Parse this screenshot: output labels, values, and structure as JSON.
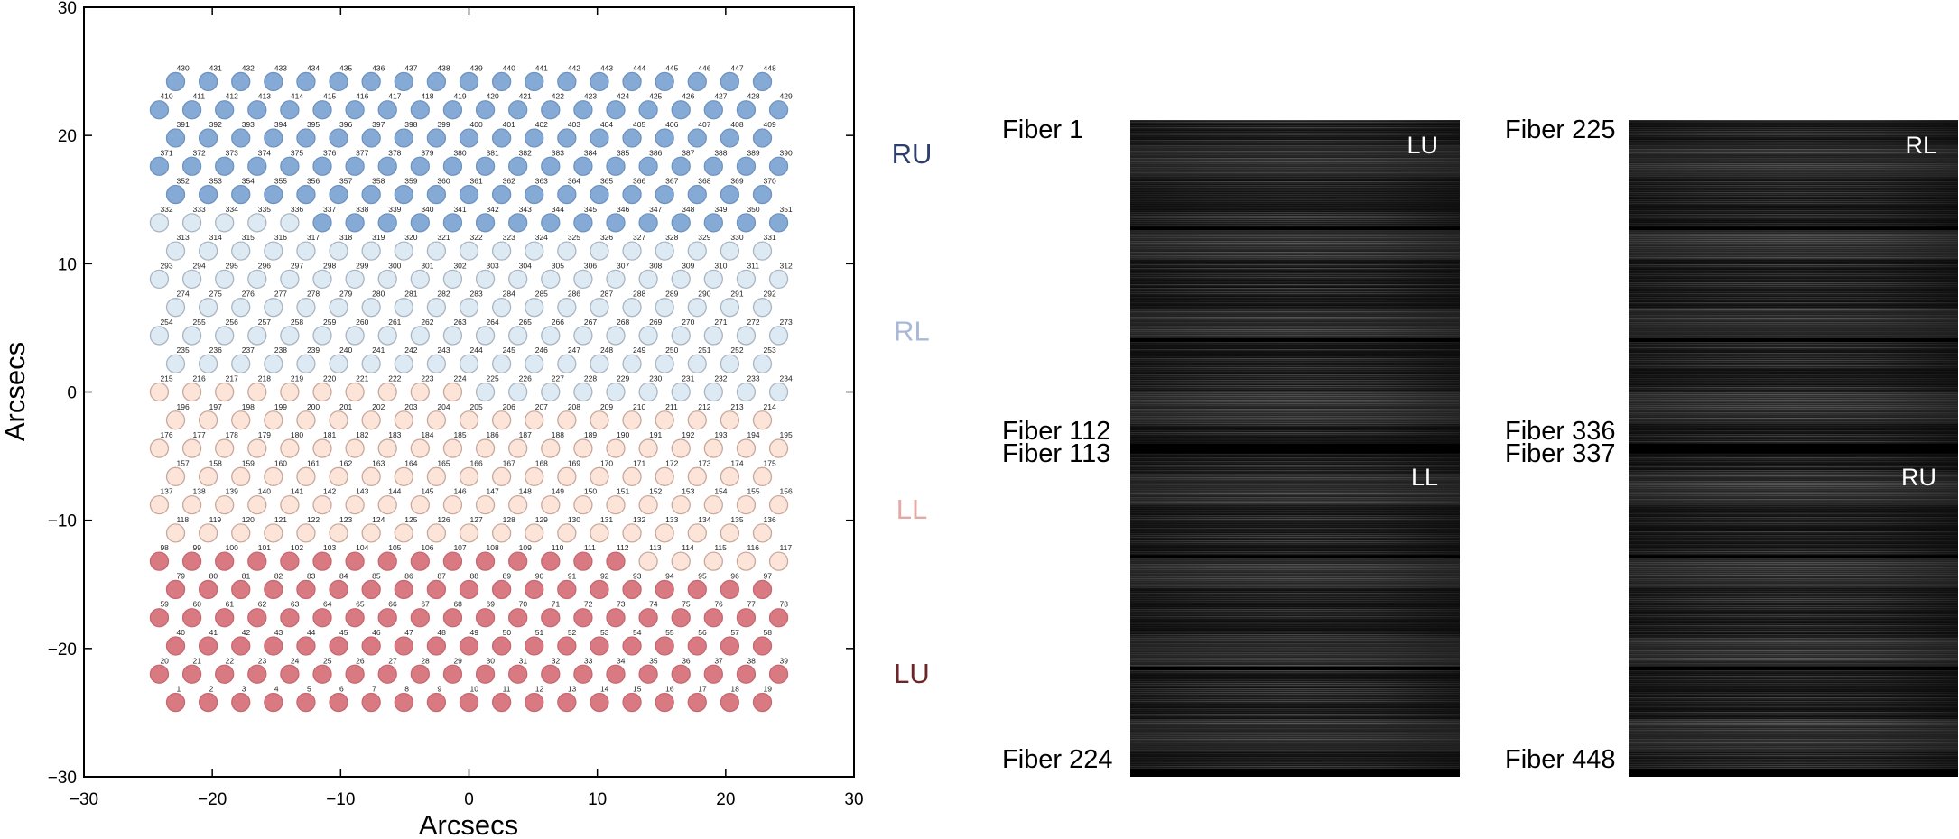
{
  "chart_data": {
    "type": "scatter",
    "xlabel": "Arcsecs",
    "ylabel": "Arcsecs",
    "xlim": [
      -30,
      30
    ],
    "ylim": [
      -30,
      30
    ],
    "xticks": [
      -30,
      -20,
      -10,
      0,
      10,
      20,
      30
    ],
    "yticks": [
      -30,
      -20,
      -10,
      0,
      10,
      20,
      30
    ],
    "xtick_labels": [
      "−30",
      "−20",
      "−10",
      "0",
      "10",
      "20",
      "30"
    ],
    "ytick_labels": [
      "−30",
      "−20",
      "−10",
      "0",
      "10",
      "20",
      "30"
    ],
    "grid": false,
    "fiber_count": 448,
    "row_spacing_arcsec": 2.2,
    "fiber_spacing_arcsec": 2.54,
    "rows": [
      {
        "first": 1,
        "count": 19,
        "y": -24.2
      },
      {
        "first": 20,
        "count": 20,
        "y": -22.0
      },
      {
        "first": 40,
        "count": 19,
        "y": -19.8
      },
      {
        "first": 59,
        "count": 20,
        "y": -17.6
      },
      {
        "first": 79,
        "count": 19,
        "y": -15.4
      },
      {
        "first": 98,
        "count": 20,
        "y": -13.2
      },
      {
        "first": 118,
        "count": 19,
        "y": -11.0
      },
      {
        "first": 137,
        "count": 20,
        "y": -8.8
      },
      {
        "first": 157,
        "count": 19,
        "y": -6.6
      },
      {
        "first": 176,
        "count": 20,
        "y": -4.4
      },
      {
        "first": 196,
        "count": 19,
        "y": -2.2
      },
      {
        "first": 215,
        "count": 20,
        "y": 0.0
      },
      {
        "first": 235,
        "count": 19,
        "y": 2.2
      },
      {
        "first": 254,
        "count": 20,
        "y": 4.4
      },
      {
        "first": 274,
        "count": 19,
        "y": 6.6
      },
      {
        "first": 293,
        "count": 20,
        "y": 8.8
      },
      {
        "first": 313,
        "count": 19,
        "y": 11.0
      },
      {
        "first": 332,
        "count": 20,
        "y": 13.2
      },
      {
        "first": 352,
        "count": 19,
        "y": 15.4
      },
      {
        "first": 371,
        "count": 20,
        "y": 17.6
      },
      {
        "first": 391,
        "count": 19,
        "y": 19.8
      },
      {
        "first": 410,
        "count": 20,
        "y": 22.0
      },
      {
        "first": 430,
        "count": 19,
        "y": 24.2
      }
    ],
    "groups": [
      {
        "name": "LU",
        "from": 1,
        "to": 112,
        "color": "#d97a82",
        "edge": "#c56870"
      },
      {
        "name": "LL",
        "from": 113,
        "to": 224,
        "color": "#fde4d8",
        "edge": "#c9a89c"
      },
      {
        "name": "RL",
        "from": 225,
        "to": 336,
        "color": "#dde9f3",
        "edge": "#a9b6c2"
      },
      {
        "name": "RU",
        "from": 337,
        "to": 448,
        "color": "#85aad5",
        "edge": "#6f93be"
      }
    ],
    "group_labels": [
      {
        "text": "RU",
        "y": 18.6,
        "color": "#2e3f6e"
      },
      {
        "text": "RL",
        "y": 4.8,
        "color": "#a9b8d9"
      },
      {
        "text": "LL",
        "y": -9.1,
        "color": "#e3aaa5"
      },
      {
        "text": "LU",
        "y": -21.9,
        "color": "#6e2525"
      }
    ]
  },
  "spectra": {
    "panels": [
      {
        "segments": [
          "LU",
          "LL"
        ],
        "labels": [
          "Fiber 1",
          "Fiber 112",
          "Fiber 113",
          "Fiber 224"
        ]
      },
      {
        "segments": [
          "RL",
          "RU"
        ],
        "labels": [
          "Fiber 225",
          "Fiber 336",
          "Fiber 337",
          "Fiber 448"
        ]
      }
    ]
  }
}
